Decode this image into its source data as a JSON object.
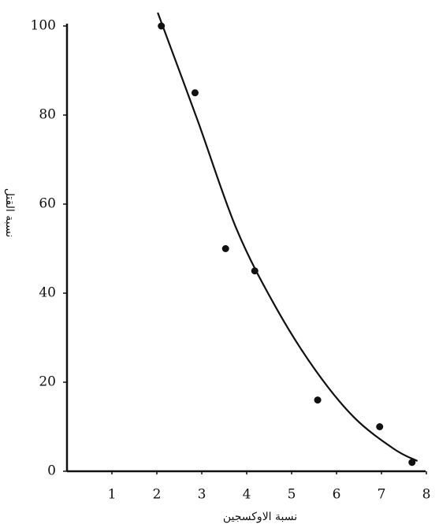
{
  "chart_data": {
    "type": "scatter",
    "xlabel": "نسبة الاوكسجين",
    "ylabel": "نسبة القتل",
    "points": {
      "x": [
        2.1,
        2.85,
        3.53,
        4.18,
        5.58,
        6.96,
        7.68
      ],
      "y": [
        100,
        85,
        50,
        45,
        16,
        10,
        2
      ]
    },
    "curve": {
      "x": [
        2.02,
        2.9,
        3.77,
        4.65,
        5.53,
        6.4,
        7.28,
        7.8
      ],
      "y": [
        103,
        79,
        54.5,
        36.8,
        22.7,
        12,
        5,
        2.3
      ]
    },
    "color": "#111111",
    "xlim": [
      0,
      8
    ],
    "ylim": [
      0,
      100
    ],
    "xticks": [
      1,
      2,
      3,
      4,
      5,
      6,
      7,
      8
    ],
    "yticks": [
      0,
      20,
      40,
      60,
      80,
      100
    ],
    "grid": false
  }
}
